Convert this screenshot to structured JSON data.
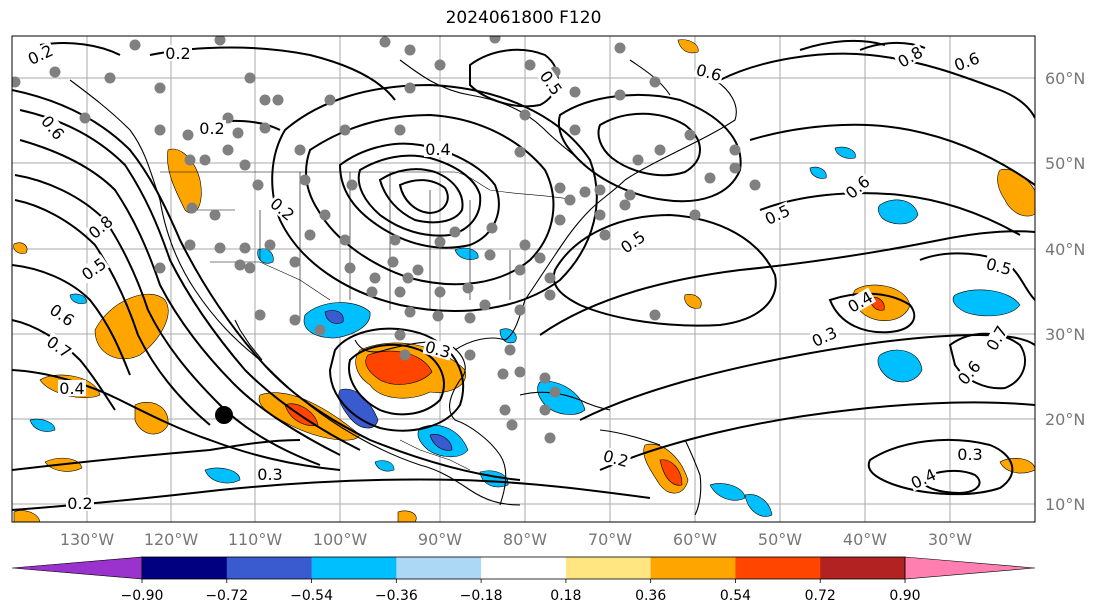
{
  "title": "2024061800 F120",
  "map": {
    "lat_labels": [
      "60°N",
      "50°N",
      "40°N",
      "30°N",
      "20°N",
      "10°N"
    ],
    "lon_labels": [
      "130°W",
      "120°W",
      "110°W",
      "100°W",
      "90°W",
      "80°W",
      "70°W",
      "60°W",
      "50°W",
      "40°W",
      "30°W"
    ],
    "contour_labels": [
      "0.2",
      "0.2",
      "0.2",
      "0.2",
      "0.2",
      "0.2",
      "0.3",
      "0.3",
      "0.3",
      "0.3",
      "0.4",
      "0.4",
      "0.4",
      "0.4",
      "0.5",
      "0.5",
      "0.5",
      "0.5",
      "0.5",
      "0.6",
      "0.6",
      "0.6",
      "0.6",
      "0.6",
      "0.6",
      "0.7",
      "0.7",
      "0.8",
      "0.8"
    ],
    "positive_fill": "#ffa500",
    "strong_positive_fill": "#ff4500",
    "negative_fill": "#00bfff",
    "strong_negative_fill": "#3a5bd0",
    "contour_color": "#000000"
  },
  "colorbar": {
    "tick_labels": [
      "−0.90",
      "−0.72",
      "−0.54",
      "−0.36",
      "−0.18",
      "0.18",
      "0.36",
      "0.54",
      "0.72",
      "0.90"
    ],
    "colors": [
      "#9a32cd",
      "#000080",
      "#3a5bd0",
      "#00bfff",
      "#add8f5",
      "#ffffff",
      "#ffe680",
      "#ffa500",
      "#ff4500",
      "#b22222",
      "#ff80b0"
    ]
  }
}
